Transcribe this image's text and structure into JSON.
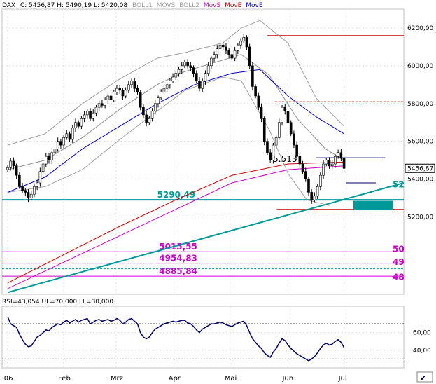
{
  "header": {
    "symbol": "DAX",
    "quote": "C: 5456,87  H: 5490,19  L: 5420,08",
    "legend": [
      {
        "label": "BOLL1",
        "color": "#a0a0a0"
      },
      {
        "label": "MOVS",
        "color": "#a0a0a0"
      },
      {
        "label": "BOLL2",
        "color": "#a0a0a0"
      },
      {
        "label": "MovS",
        "color": "#cc00cc"
      },
      {
        "label": "MovE",
        "color": "#cc0000"
      },
      {
        "label": "MovE",
        "color": "#0000cc"
      }
    ]
  },
  "last_price_label": "5456,87",
  "rsi_header": "RSI=43,054 UL=70,000 LL=30,000",
  "corner_mark": "✔",
  "chart_data": [
    {
      "type": "candlestick",
      "title": "",
      "x_tick_labels": [
        "'06",
        "Feb",
        "Mrz",
        "Apr",
        "Mai",
        "Jun",
        "Jul"
      ],
      "x_tick_days": [
        0,
        30,
        58,
        89,
        119,
        150,
        180
      ],
      "y_ticks": [
        5200,
        5400,
        5600,
        5800,
        6000,
        6200
      ],
      "y_tick_labels": [
        "5200,00",
        "5400,00",
        "5600,00",
        "5800,00",
        "6000,00",
        "6200,00"
      ],
      "ylim": [
        4790,
        6300
      ],
      "xlim": [
        -3,
        212
      ],
      "closes": [
        5460,
        5495,
        5470,
        5420,
        5360,
        5340,
        5330,
        5300,
        5320,
        5360,
        5380,
        5440,
        5480,
        5520,
        5500,
        5540,
        5560,
        5600,
        5580,
        5620,
        5640,
        5610,
        5670,
        5700,
        5680,
        5720,
        5740,
        5760,
        5720,
        5750,
        5780,
        5800,
        5790,
        5820,
        5840,
        5820,
        5860,
        5880,
        5870,
        5840,
        5870,
        5900,
        5920,
        5880,
        5860,
        5780,
        5740,
        5700,
        5720,
        5760,
        5800,
        5830,
        5860,
        5880,
        5900,
        5920,
        5940,
        5960,
        5980,
        6000,
        6020,
        6000,
        5990,
        5960,
        5920,
        5880,
        5920,
        5960,
        6000,
        6040,
        6060,
        6090,
        6110,
        6100,
        6080,
        6060,
        6040,
        6080,
        6110,
        6130,
        6150,
        6100,
        6000,
        5890,
        5840,
        5780,
        5720,
        5600,
        5540,
        5500,
        5580,
        5620,
        5700,
        5780,
        5760,
        5700,
        5640,
        5580,
        5520,
        5480,
        5440,
        5400,
        5330,
        5290,
        5310,
        5360,
        5420,
        5480,
        5500,
        5470,
        5480,
        5520,
        5540,
        5510,
        5456.87
      ],
      "candle_width": 3,
      "overlays": {
        "boll_mid": {
          "color": "#909090",
          "values": [
            [
              0,
              5450
            ],
            [
              20,
              5500
            ],
            [
              40,
              5620
            ],
            [
              60,
              5770
            ],
            [
              80,
              5900
            ],
            [
              95,
              5970
            ],
            [
              115,
              6030
            ],
            [
              125,
              6060
            ],
            [
              140,
              5950
            ],
            [
              155,
              5720
            ],
            [
              170,
              5560
            ],
            [
              180,
              5500
            ]
          ]
        },
        "boll_upper": {
          "color": "#a0a0a0",
          "values": [
            [
              0,
              5580
            ],
            [
              20,
              5640
            ],
            [
              40,
              5800
            ],
            [
              60,
              5930
            ],
            [
              80,
              6040
            ],
            [
              95,
              6070
            ],
            [
              115,
              6120
            ],
            [
              125,
              6200
            ],
            [
              135,
              6240
            ],
            [
              150,
              6120
            ],
            [
              165,
              5830
            ],
            [
              180,
              5680
            ]
          ]
        },
        "boll_lower": {
          "color": "#a0a0a0",
          "values": [
            [
              0,
              5330
            ],
            [
              20,
              5360
            ],
            [
              40,
              5450
            ],
            [
              60,
              5610
            ],
            [
              80,
              5760
            ],
            [
              95,
              5870
            ],
            [
              115,
              5940
            ],
            [
              125,
              5920
            ],
            [
              140,
              5660
            ],
            [
              150,
              5430
            ],
            [
              160,
              5290
            ],
            [
              172,
              5260
            ]
          ]
        },
        "move_blue": {
          "color": "#0000cc",
          "values": [
            [
              0,
              5330
            ],
            [
              20,
              5410
            ],
            [
              40,
              5560
            ],
            [
              60,
              5680
            ],
            [
              80,
              5800
            ],
            [
              100,
              5900
            ],
            [
              120,
              5960
            ],
            [
              135,
              5980
            ],
            [
              150,
              5840
            ],
            [
              165,
              5730
            ],
            [
              180,
              5640
            ]
          ]
        },
        "move_red": {
          "color": "#cc0000",
          "values": [
            [
              0,
              4850
            ],
            [
              30,
              5000
            ],
            [
              60,
              5150
            ],
            [
              90,
              5290
            ],
            [
              120,
              5420
            ],
            [
              150,
              5480
            ],
            [
              180,
              5490
            ]
          ]
        },
        "movs_magenta": {
          "color": "#cc00cc",
          "values": [
            [
              0,
              4820
            ],
            [
              30,
              4960
            ],
            [
              60,
              5100
            ],
            [
              90,
              5240
            ],
            [
              120,
              5380
            ],
            [
              150,
              5450
            ],
            [
              180,
              5470
            ]
          ]
        }
      },
      "trendline": {
        "color": "#009999",
        "from": [
          0,
          4800
        ],
        "to": [
          212,
          5380
        ]
      },
      "horizontal_levels": [
        {
          "value": 6160,
          "color": "#cc0000",
          "label": ""
        },
        {
          "value": 5810,
          "color": "#cc0000",
          "label": "",
          "dashed": true
        },
        {
          "value": 5513,
          "color": "#000066",
          "label": "5.513"
        },
        {
          "value": 5380,
          "color": "#000066",
          "label": ""
        },
        {
          "value": 5290.49,
          "color": "#009999",
          "label": "5290,49"
        },
        {
          "value": 5240,
          "color": "#cc0000",
          "label": ""
        },
        {
          "value": 5015.55,
          "color": "#cc00cc",
          "label": "5015,55"
        },
        {
          "value": 4954.83,
          "color": "#cc00cc",
          "label": "4954,83"
        },
        {
          "value": 4925,
          "color": "#009999",
          "label": "",
          "dashed": true
        },
        {
          "value": 4885.84,
          "color": "#cc00cc",
          "label": "4885,84"
        }
      ],
      "right_edge_labels": [
        "52",
        "50",
        "49",
        "48"
      ]
    },
    {
      "type": "line",
      "title": "",
      "series": [
        {
          "name": "RSI",
          "values": [
            78,
            70,
            68,
            66,
            58,
            52,
            47,
            44,
            45,
            50,
            55,
            57,
            60,
            63,
            62,
            66,
            68,
            70,
            69,
            72,
            74,
            71,
            73,
            75,
            72,
            74,
            75,
            76,
            70,
            72,
            74,
            75,
            73,
            74,
            75,
            73,
            74,
            76,
            74,
            70,
            72,
            75,
            76,
            73,
            70,
            60,
            55,
            53,
            55,
            60,
            64,
            66,
            68,
            70,
            71,
            72,
            73,
            72,
            73,
            74,
            74,
            71,
            70,
            67,
            63,
            60,
            64,
            66,
            68,
            70,
            70,
            71,
            72,
            71,
            69,
            68,
            67,
            69,
            71,
            72,
            73,
            68,
            60,
            53,
            49,
            45,
            42,
            37,
            34,
            32,
            38,
            42,
            48,
            53,
            51,
            46,
            42,
            39,
            36,
            34,
            32,
            30,
            28,
            30,
            33,
            37,
            42,
            46,
            48,
            46,
            47,
            50,
            52,
            49,
            43.05
          ]
        }
      ],
      "x_tick_days": [
        0,
        30,
        58,
        89,
        119,
        150,
        180
      ],
      "y_ticks": [
        40,
        60
      ],
      "y_tick_labels": [
        "40,00",
        "60,00"
      ],
      "ylim": [
        20,
        90
      ],
      "upper_level": 70,
      "lower_level": 30
    }
  ]
}
